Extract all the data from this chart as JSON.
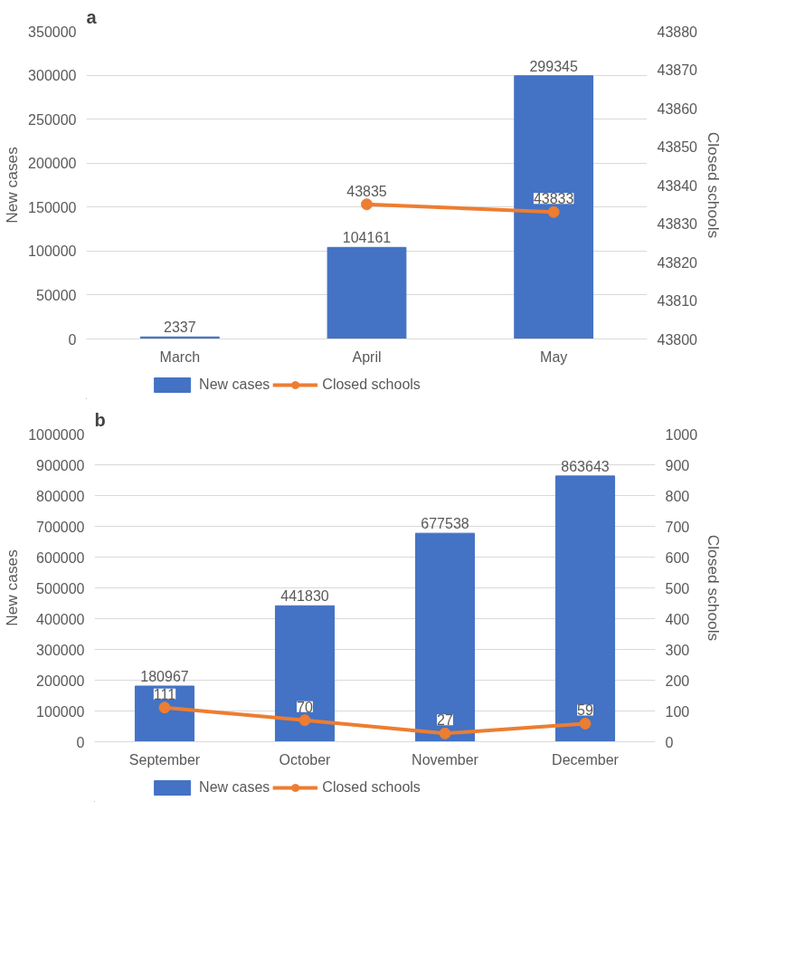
{
  "chart_data": [
    {
      "type": "bar",
      "title": "a",
      "categories": [
        "March",
        "April",
        "May"
      ],
      "ylabel": "New cases",
      "y2label": "Closed schools",
      "ylim": [
        0,
        350000
      ],
      "yticks": [
        0,
        50000,
        100000,
        150000,
        200000,
        250000,
        300000,
        350000
      ],
      "y2lim": [
        43800,
        43880
      ],
      "y2ticks": [
        43800,
        43810,
        43820,
        43830,
        43840,
        43850,
        43860,
        43870,
        43880
      ],
      "grid": "y",
      "legend": "bottom",
      "data_labels": true,
      "marker": "circle",
      "series": [
        {
          "name": "New cases",
          "color": "#4472c4",
          "values": [
            2337,
            104161,
            299345
          ]
        },
        {
          "name": "Closed schools",
          "type": "line",
          "axis": "y2",
          "color": "#ed7d31",
          "values": [
            null,
            43835,
            43833
          ]
        }
      ]
    },
    {
      "type": "bar",
      "title": "b",
      "categories": [
        "September",
        "October",
        "November",
        "December"
      ],
      "ylabel": "New cases",
      "y2label": "Closed schools",
      "ylim": [
        0,
        1000000
      ],
      "yticks": [
        0,
        100000,
        200000,
        300000,
        400000,
        500000,
        600000,
        700000,
        800000,
        900000,
        1000000
      ],
      "y2lim": [
        0,
        1000
      ],
      "y2ticks": [
        0,
        100,
        200,
        300,
        400,
        500,
        600,
        700,
        800,
        900,
        1000
      ],
      "grid": "y",
      "legend": "bottom",
      "data_labels": true,
      "marker": "circle",
      "series": [
        {
          "name": "New cases",
          "color": "#4472c4",
          "values": [
            180967,
            441830,
            677538,
            863643
          ]
        },
        {
          "name": "Closed schools",
          "type": "line",
          "axis": "y2",
          "color": "#ed7d31",
          "values": [
            111,
            70,
            27,
            59
          ]
        }
      ]
    }
  ]
}
